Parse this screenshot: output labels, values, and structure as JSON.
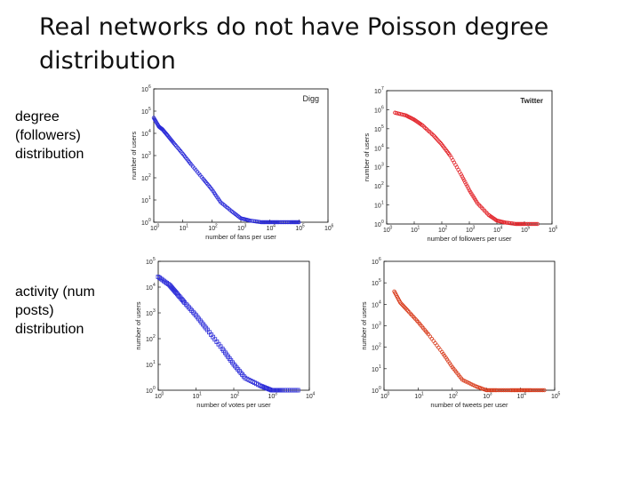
{
  "title": "Real networks do not have Poisson degree distribution",
  "labels": {
    "degree": "degree (followers) distribution",
    "activity": "activity (num posts) distribution"
  },
  "chart_data": [
    {
      "type": "scatter",
      "legend": "Digg",
      "legend_position": "top-right",
      "xlabel": "number of fans per user",
      "ylabel": "number of users",
      "xscale": "log",
      "yscale": "log",
      "xlim": [
        1,
        1000000
      ],
      "ylim": [
        1,
        1000000
      ],
      "marker": "circle",
      "color": "#2b2bd8",
      "series": [
        {
          "x": [
            1,
            1.5,
            2,
            3,
            5,
            10,
            20,
            50,
            100,
            200,
            500,
            1000,
            2000,
            5000,
            10000,
            20000,
            50000,
            100000
          ],
          "y": [
            50000,
            20000,
            15000,
            8000,
            3500,
            1200,
            380,
            90,
            30,
            8,
            3,
            1.5,
            1.2,
            1,
            1,
            1,
            1,
            1
          ]
        }
      ]
    },
    {
      "type": "scatter",
      "legend": "Twitter",
      "legend_position": "top-right",
      "xlabel": "number of followers per user",
      "ylabel": "number of users",
      "xscale": "log",
      "yscale": "log",
      "xlim": [
        1,
        1000000
      ],
      "ylim": [
        1,
        10000000
      ],
      "marker": "circle",
      "color": "#e3262c",
      "series": [
        {
          "x": [
            2,
            5,
            10,
            20,
            50,
            100,
            200,
            500,
            1000,
            2000,
            5000,
            10000,
            20000,
            50000,
            100000,
            300000
          ],
          "y": [
            700000,
            500000,
            300000,
            150000,
            45000,
            15000,
            4000,
            400,
            60,
            12,
            3,
            1.5,
            1.2,
            1,
            1,
            1
          ]
        }
      ]
    },
    {
      "type": "scatter",
      "xlabel": "number of votes per user",
      "ylabel": "number of users",
      "xscale": "log",
      "yscale": "log",
      "xlim": [
        1,
        10000
      ],
      "ylim": [
        1,
        100000
      ],
      "marker": "square",
      "color": "#2b2bd8",
      "series": [
        {
          "x": [
            1,
            2,
            3,
            5,
            10,
            20,
            50,
            100,
            200,
            500,
            1000,
            2000,
            5000
          ],
          "y": [
            25000,
            12000,
            6000,
            2500,
            800,
            220,
            40,
            10,
            3,
            1.5,
            1,
            1,
            1
          ]
        }
      ]
    },
    {
      "type": "scatter",
      "xlabel": "number of tweets per user",
      "ylabel": "number of users",
      "xscale": "log",
      "yscale": "log",
      "xlim": [
        1,
        100000
      ],
      "ylim": [
        1,
        1000000
      ],
      "marker": "circle",
      "color": "#d83a1a",
      "series": [
        {
          "x": [
            2,
            3,
            5,
            10,
            20,
            50,
            100,
            200,
            500,
            1000,
            2000,
            5000,
            10000,
            20000,
            50000
          ],
          "y": [
            40000,
            12000,
            5000,
            1500,
            400,
            60,
            12,
            3,
            1.5,
            1,
            1,
            1,
            1,
            1,
            1
          ]
        }
      ]
    }
  ]
}
